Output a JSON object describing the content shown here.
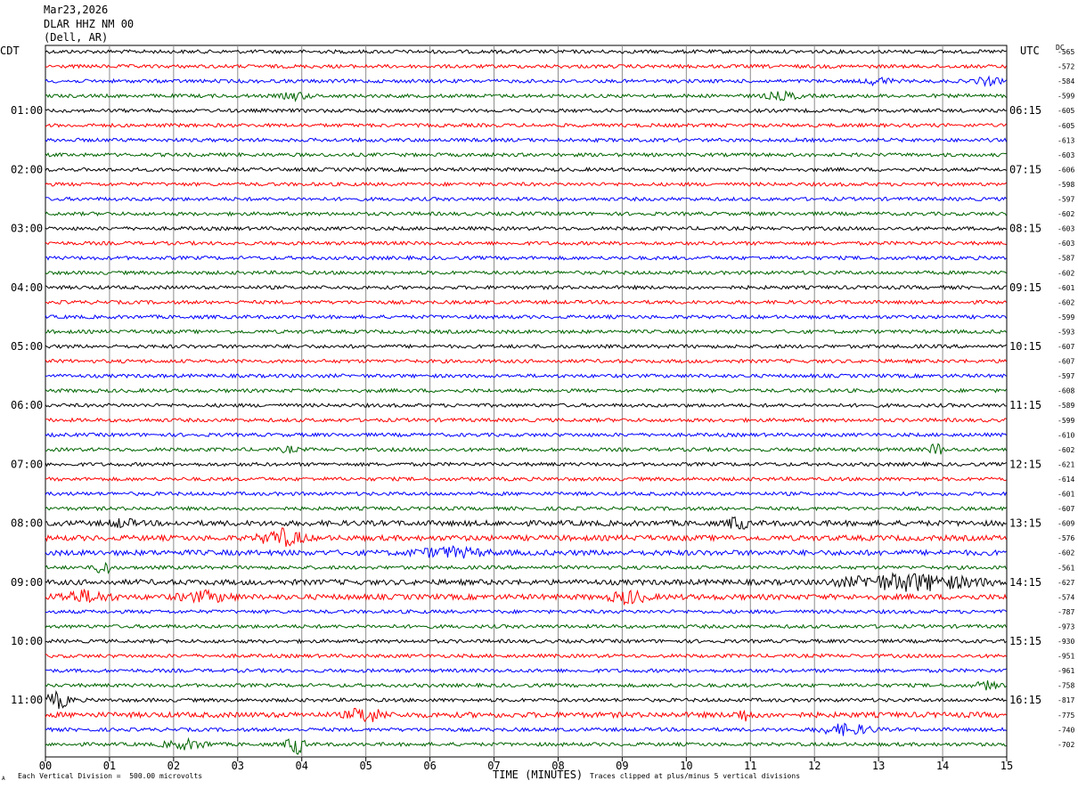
{
  "header": {
    "date": "Mar23,2026",
    "station": "DLAR HHZ NM 00",
    "location": "(Dell, AR)"
  },
  "axes": {
    "left_tz": "CDT",
    "right_tz": "UTC",
    "dc_label": "DC",
    "xlabel": "TIME (MINUTES)"
  },
  "footer": {
    "left_note": "Each Vertical Division =  500.00 microvolts",
    "right_note": "Traces clipped at plus/minus 5 vertical divisions",
    "corner_mark": "A"
  },
  "colors": [
    "#000000",
    "#ff0000",
    "#0000ff",
    "#006400"
  ],
  "chart_data": {
    "type": "line",
    "title": "",
    "xlim": [
      0,
      15
    ],
    "x_ticks": [
      "00",
      "01",
      "02",
      "03",
      "04",
      "05",
      "06",
      "07",
      "08",
      "09",
      "10",
      "11",
      "12",
      "13",
      "14",
      "15"
    ],
    "left_hour_labels": [
      "01:00",
      "02:00",
      "03:00",
      "04:00",
      "05:00",
      "06:00",
      "07:00",
      "08:00",
      "09:00",
      "10:00",
      "11:00"
    ],
    "right_hour_labels": [
      "06:15",
      "07:15",
      "08:15",
      "09:15",
      "10:15",
      "11:15",
      "12:15",
      "13:15",
      "14:15",
      "15:15",
      "16:15"
    ],
    "dc_offsets": [
      "-565",
      "-572",
      "-584",
      "-599",
      "-605",
      "-605",
      "-613",
      "-603",
      "-606",
      "-598",
      "-597",
      "-602",
      "-603",
      "-603",
      "-587",
      "-602",
      "-601",
      "-602",
      "-599",
      "-593",
      "-607",
      "-607",
      "-597",
      "-608",
      "-589",
      "-599",
      "-610",
      "-602",
      "-621",
      "-614",
      "-601",
      "-607",
      "-609",
      "-576",
      "-602",
      "-561",
      "-627",
      "-574",
      "-787",
      "-973",
      "-930",
      "-951",
      "-961",
      "-758",
      "-817",
      "-775",
      "-740",
      "-702"
    ],
    "trace_amplitude": [
      2,
      2,
      2,
      2,
      2,
      2,
      2,
      2,
      2,
      2,
      2,
      2,
      2,
      2,
      2,
      2,
      2,
      2,
      2,
      2,
      2,
      2,
      2,
      2,
      2,
      2,
      2,
      2,
      2,
      2,
      2,
      2,
      3,
      3,
      3,
      2,
      3,
      3,
      2,
      2,
      2,
      2,
      2,
      2,
      2,
      3,
      2,
      2
    ],
    "events": [
      {
        "trace": 2,
        "minute": 13.0,
        "duration": 0.3,
        "amp": 4
      },
      {
        "trace": 2,
        "minute": 14.7,
        "duration": 0.3,
        "amp": 4
      },
      {
        "trace": 3,
        "minute": 3.9,
        "duration": 0.3,
        "amp": 4
      },
      {
        "trace": 3,
        "minute": 11.5,
        "duration": 0.4,
        "amp": 4
      },
      {
        "trace": 27,
        "minute": 3.8,
        "duration": 0.2,
        "amp": 3
      },
      {
        "trace": 27,
        "minute": 13.9,
        "duration": 0.15,
        "amp": 8
      },
      {
        "trace": 32,
        "minute": 1.2,
        "duration": 0.3,
        "amp": 4
      },
      {
        "trace": 32,
        "minute": 10.8,
        "duration": 0.2,
        "amp": 8
      },
      {
        "trace": 33,
        "minute": 3.7,
        "duration": 0.5,
        "amp": 9
      },
      {
        "trace": 34,
        "minute": 6.3,
        "duration": 0.8,
        "amp": 5
      },
      {
        "trace": 35,
        "minute": 0.9,
        "duration": 0.15,
        "amp": 11
      },
      {
        "trace": 36,
        "minute": 13.5,
        "duration": 1.5,
        "amp": 9
      },
      {
        "trace": 37,
        "minute": 0.6,
        "duration": 0.6,
        "amp": 6
      },
      {
        "trace": 37,
        "minute": 2.5,
        "duration": 0.6,
        "amp": 5
      },
      {
        "trace": 37,
        "minute": 9.1,
        "duration": 0.4,
        "amp": 7
      },
      {
        "trace": 43,
        "minute": 14.7,
        "duration": 0.3,
        "amp": 4
      },
      {
        "trace": 44,
        "minute": 0.2,
        "duration": 0.3,
        "amp": 9
      },
      {
        "trace": 45,
        "minute": 5.0,
        "duration": 0.4,
        "amp": 8
      },
      {
        "trace": 45,
        "minute": 10.9,
        "duration": 0.2,
        "amp": 6
      },
      {
        "trace": 46,
        "minute": 12.5,
        "duration": 0.6,
        "amp": 6
      },
      {
        "trace": 47,
        "minute": 2.2,
        "duration": 0.5,
        "amp": 5
      },
      {
        "trace": 47,
        "minute": 3.9,
        "duration": 0.2,
        "amp": 12
      }
    ]
  }
}
